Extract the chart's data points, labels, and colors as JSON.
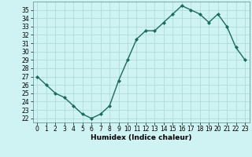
{
  "x": [
    0,
    1,
    2,
    3,
    4,
    5,
    6,
    7,
    8,
    9,
    10,
    11,
    12,
    13,
    14,
    15,
    16,
    17,
    18,
    19,
    20,
    21,
    22,
    23
  ],
  "y": [
    27,
    26,
    25,
    24.5,
    23.5,
    22.5,
    22,
    22.5,
    23.5,
    26.5,
    29,
    31.5,
    32.5,
    32.5,
    33.5,
    34.5,
    35.5,
    35,
    34.5,
    33.5,
    34.5,
    33,
    30.5,
    29
  ],
  "line_color": "#1a6b5e",
  "marker": "D",
  "marker_size": 2.0,
  "bg_color": "#cff2f2",
  "grid_color": "#aad8d8",
  "xlabel": "Humidex (Indice chaleur)",
  "xlim": [
    -0.5,
    23.5
  ],
  "ylim": [
    21.5,
    36
  ],
  "yticks": [
    22,
    23,
    24,
    25,
    26,
    27,
    28,
    29,
    30,
    31,
    32,
    33,
    34,
    35
  ],
  "xticks": [
    0,
    1,
    2,
    3,
    4,
    5,
    6,
    7,
    8,
    9,
    10,
    11,
    12,
    13,
    14,
    15,
    16,
    17,
    18,
    19,
    20,
    21,
    22,
    23
  ],
  "xlabel_fontsize": 6.5,
  "tick_fontsize": 5.5,
  "line_width": 1.0
}
